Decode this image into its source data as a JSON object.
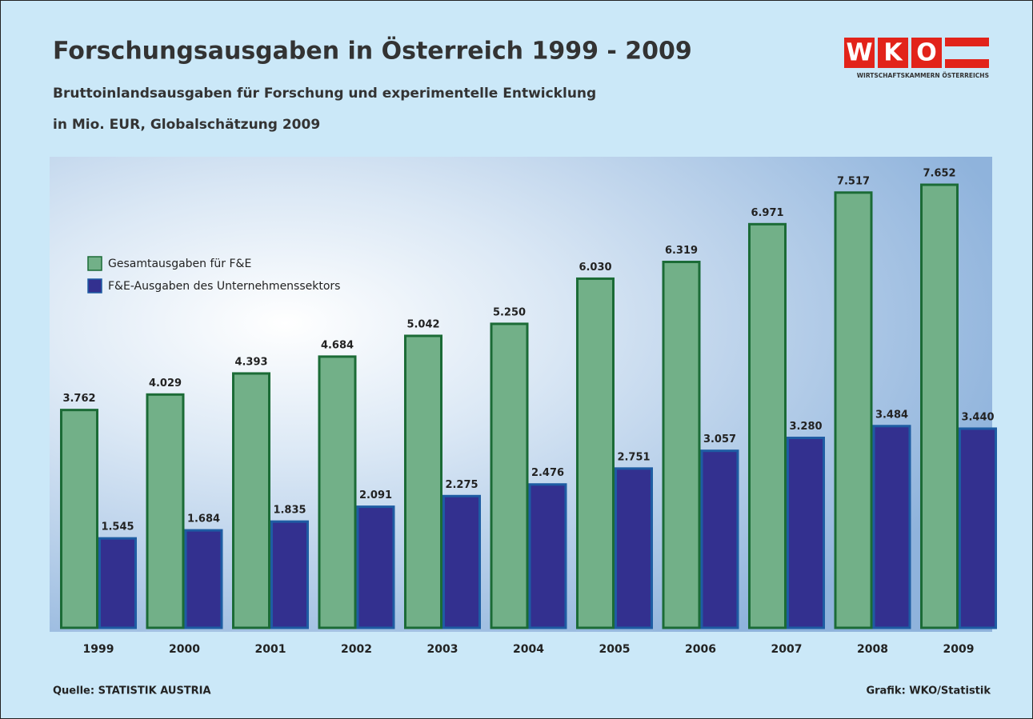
{
  "logo": {
    "letters": [
      "W",
      "K",
      "O"
    ],
    "caption": "WIRTSCHAFTSKAMMERN ÖSTERREICHS"
  },
  "chart_data": {
    "type": "bar",
    "title": "Forschungsausgaben in Österreich 1999 - 2009",
    "subtitle": [
      "Bruttoinlandsausgaben für Forschung und experimentelle Entwicklung",
      "in Mio. EUR, Globalschätzung 2009"
    ],
    "source": "Quelle: STATISTIK AUSTRIA",
    "credit": "Grafik: WKO/Statistik",
    "categories": [
      "1999",
      "2000",
      "2001",
      "2002",
      "2003",
      "2004",
      "2005",
      "2006",
      "2007",
      "2008",
      "2009"
    ],
    "series": [
      {
        "name": "Gesamtausgaben für F&E",
        "color": "#72b088",
        "stroke": "#1b6b36",
        "values": [
          3762,
          4029,
          4393,
          4684,
          5042,
          5250,
          6030,
          6319,
          6971,
          7517,
          7652
        ],
        "value_labels": [
          "3.762",
          "4.029",
          "4.393",
          "4.684",
          "5.042",
          "5.250",
          "6.030",
          "6.319",
          "6.971",
          "7.517",
          "7.652"
        ]
      },
      {
        "name": "F&E-Ausgaben des Unternehmenssektors",
        "color": "#33308f",
        "stroke": "#1e5ca3",
        "values": [
          1545,
          1684,
          1835,
          2091,
          2275,
          2476,
          2751,
          3057,
          3280,
          3484,
          3440
        ],
        "value_labels": [
          "1.545",
          "1.684",
          "1.835",
          "2.091",
          "2.275",
          "2.476",
          "2.751",
          "3.057",
          "3.280",
          "3.484",
          "3.440"
        ]
      }
    ]
  }
}
